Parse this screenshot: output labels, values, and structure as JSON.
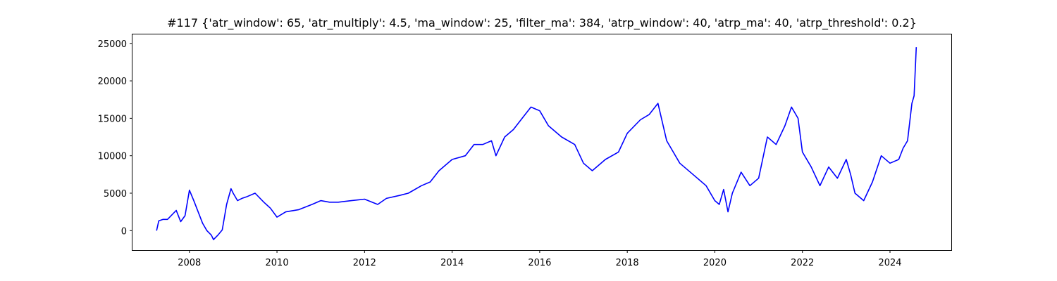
{
  "chart_data": {
    "type": "line",
    "title": "#117 {'atr_window': 65, 'atr_multiply': 4.5, 'ma_window': 25, 'filter_ma': 384, 'atrp_window': 40, 'atrp_ma': 40, 'atrp_threshold': 0.2}",
    "xlabel": "",
    "ylabel": "",
    "xlim": [
      2006.7,
      2025.4
    ],
    "ylim": [
      -2600,
      26200
    ],
    "x_ticks": [
      2008,
      2010,
      2012,
      2014,
      2016,
      2018,
      2020,
      2022,
      2024
    ],
    "x_tick_labels": [
      "2008",
      "2010",
      "2012",
      "2014",
      "2016",
      "2018",
      "2020",
      "2022",
      "2024"
    ],
    "y_ticks": [
      0,
      5000,
      10000,
      15000,
      20000,
      25000
    ],
    "y_tick_labels": [
      "0",
      "5000",
      "10000",
      "15000",
      "20000",
      "25000"
    ],
    "grid": false,
    "series": [
      {
        "color": "#0000ff",
        "x": [
          2007.25,
          2007.3,
          2007.4,
          2007.5,
          2007.7,
          2007.8,
          2007.9,
          2008.0,
          2008.1,
          2008.2,
          2008.3,
          2008.4,
          2008.5,
          2008.55,
          2008.65,
          2008.75,
          2008.85,
          2008.95,
          2009.0,
          2009.1,
          2009.2,
          2009.3,
          2009.5,
          2009.7,
          2009.85,
          2010.0,
          2010.2,
          2010.5,
          2010.8,
          2011.0,
          2011.2,
          2011.4,
          2011.7,
          2012.0,
          2012.3,
          2012.5,
          2012.8,
          2013.0,
          2013.3,
          2013.5,
          2013.7,
          2014.0,
          2014.3,
          2014.5,
          2014.7,
          2014.9,
          2015.0,
          2015.2,
          2015.4,
          2015.6,
          2015.8,
          2016.0,
          2016.2,
          2016.5,
          2016.8,
          2017.0,
          2017.2,
          2017.5,
          2017.8,
          2018.0,
          2018.3,
          2018.5,
          2018.7,
          2018.9,
          2019.0,
          2019.2,
          2019.5,
          2019.8,
          2020.0,
          2020.1,
          2020.2,
          2020.3,
          2020.4,
          2020.6,
          2020.8,
          2021.0,
          2021.2,
          2021.4,
          2021.6,
          2021.75,
          2021.9,
          2022.0,
          2022.2,
          2022.4,
          2022.6,
          2022.8,
          2023.0,
          2023.1,
          2023.2,
          2023.4,
          2023.6,
          2023.8,
          2024.0,
          2024.2,
          2024.3,
          2024.4,
          2024.5,
          2024.55,
          2024.6
        ],
        "y": [
          0,
          1300,
          1500,
          1500,
          2700,
          1200,
          2000,
          5400,
          4000,
          2500,
          1000,
          0,
          -600,
          -1200,
          -600,
          100,
          3500,
          5600,
          5000,
          4000,
          4300,
          4500,
          5000,
          3800,
          3000,
          1800,
          2500,
          2800,
          3500,
          4000,
          3800,
          3800,
          4000,
          4200,
          3500,
          4300,
          4700,
          5000,
          6000,
          6500,
          8000,
          9500,
          10000,
          11500,
          11500,
          12000,
          10000,
          12500,
          13500,
          15000,
          16500,
          16000,
          14000,
          12500,
          11500,
          9000,
          8000,
          9500,
          10500,
          13000,
          14800,
          15500,
          17000,
          12000,
          11000,
          9000,
          7500,
          6000,
          4000,
          3500,
          5500,
          2500,
          5000,
          7800,
          6000,
          7000,
          12500,
          11500,
          14000,
          16500,
          15000,
          10500,
          8500,
          6000,
          8500,
          7000,
          9500,
          7500,
          5000,
          4000,
          6500,
          10000,
          9000,
          9500,
          11000,
          12000,
          17000,
          18000,
          24500
        ]
      }
    ]
  }
}
